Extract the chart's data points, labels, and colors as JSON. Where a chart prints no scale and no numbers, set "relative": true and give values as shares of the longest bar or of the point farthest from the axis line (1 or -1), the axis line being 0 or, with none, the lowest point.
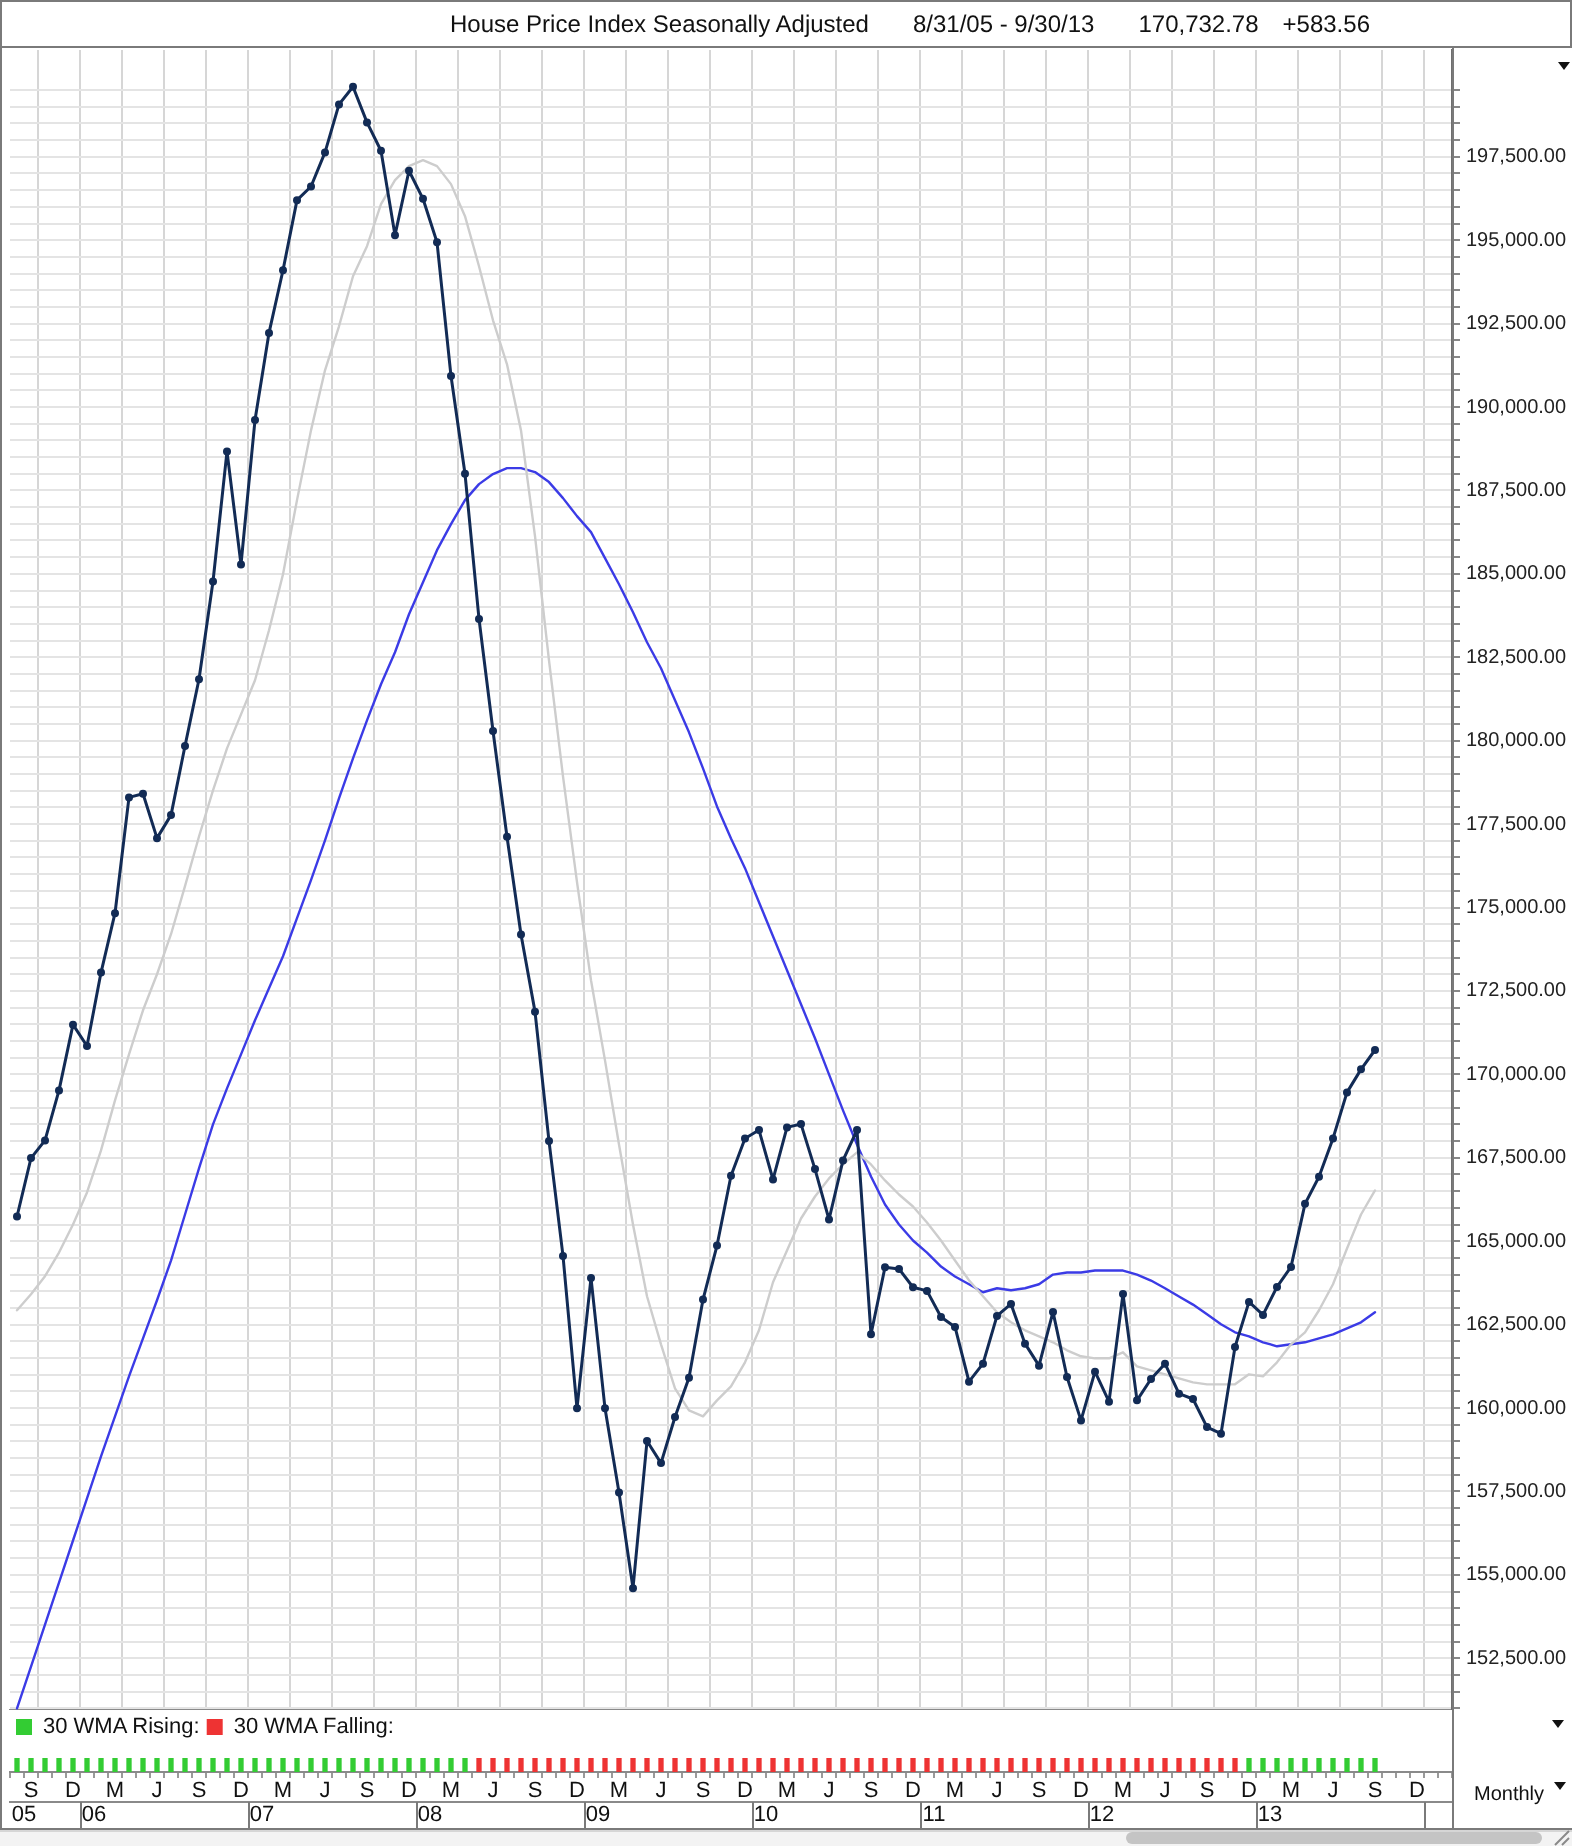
{
  "chart_data": [
    {
      "type": "line",
      "title": "House Price Index Seasonally Adjusted",
      "subtitle": "8/31/05 - 9/30/13",
      "annotations": [
        "170,732.78",
        "+583.56"
      ],
      "categories": [
        null,
        null,
        null,
        null,
        null,
        null,
        null,
        null,
        null,
        null,
        null,
        null,
        null,
        null,
        null,
        null,
        null,
        null,
        null,
        null,
        null,
        null,
        null,
        null,
        null,
        null,
        null,
        null,
        null,
        null,
        null,
        null,
        null,
        null,
        null,
        null,
        null,
        null,
        null,
        null,
        null,
        null,
        null,
        null,
        null,
        null,
        null,
        null,
        null,
        null,
        null,
        null,
        null,
        null,
        null,
        null,
        null,
        null,
        null,
        null,
        null,
        null,
        null,
        null,
        null,
        null,
        null,
        null,
        null,
        null,
        null,
        null,
        null,
        null,
        null,
        null,
        null,
        null,
        null,
        null,
        null,
        null,
        null,
        null,
        null,
        null,
        null,
        null,
        null,
        null,
        null,
        null,
        null,
        null,
        null,
        null,
        null,
        null,
        null,
        null,
        null,
        null,
        null
      ],
      "series": [
        {
          "color": "#122b55",
          "marker": "circle",
          "values": [
            165740,
            167490,
            168020,
            169520,
            171490,
            170850,
            173050,
            174830,
            178300,
            178410,
            177080,
            177770,
            179840,
            181840,
            184770,
            188670,
            185280,
            189610,
            192220,
            194100,
            196200,
            196610,
            197630,
            199070,
            199600,
            198530,
            197680,
            195150,
            197080,
            196240,
            194940,
            190930,
            188000,
            183650,
            180290,
            177120,
            174190,
            171880,
            168000,
            164560,
            159990,
            163900,
            159990,
            157470,
            154600,
            159010,
            158350,
            159730,
            160910,
            163250,
            164870,
            166960,
            168080,
            168330,
            166850,
            168410,
            168510,
            167160,
            165650,
            167420,
            168330,
            162210,
            164220,
            164170,
            163620,
            163510,
            162730,
            162430,
            160790,
            161330,
            162760,
            163120,
            161930,
            161270,
            162880,
            160930,
            159630,
            161090,
            160190,
            163420,
            160230,
            160870,
            161330,
            160430,
            160270,
            159430,
            159230,
            161830,
            163180,
            162790,
            163630,
            164230,
            166120,
            166930,
            168080,
            169460,
            170150,
            170730,
            null,
            null,
            null,
            null,
            null
          ]
        },
        {
          "color": "#cdcdcd",
          "marker": "none",
          "values": [
            162930,
            163410,
            163950,
            164660,
            165500,
            166460,
            167720,
            169220,
            170600,
            171920,
            173000,
            174200,
            175640,
            177130,
            178510,
            179770,
            180790,
            181810,
            183310,
            184990,
            187210,
            189300,
            191100,
            192420,
            193920,
            194820,
            196080,
            196800,
            197220,
            197400,
            197220,
            196680,
            195720,
            194220,
            192600,
            191280,
            189300,
            186130,
            182410,
            178930,
            175760,
            172820,
            170420,
            167900,
            165500,
            163350,
            161910,
            160590,
            159930,
            159750,
            160230,
            160650,
            161370,
            162330,
            163770,
            164720,
            165680,
            166340,
            166880,
            167300,
            167660,
            167300,
            166820,
            166400,
            166040,
            165560,
            165020,
            164420,
            163830,
            163350,
            162870,
            162570,
            162330,
            162150,
            161970,
            161730,
            161550,
            161490,
            161490,
            161670,
            161250,
            161130,
            161010,
            160890,
            160770,
            160710,
            160710,
            160710,
            161010,
            160950,
            161370,
            161910,
            162270,
            162930,
            163710,
            164780,
            165800,
            166520,
            null,
            null,
            null,
            null,
            null
          ]
        },
        {
          "color": "#3b3be6",
          "marker": "none",
          "values": [
            151000,
            152250,
            153510,
            154770,
            156030,
            157290,
            158550,
            159750,
            160950,
            162090,
            163230,
            164420,
            165800,
            167180,
            168500,
            169580,
            170600,
            171620,
            172580,
            173540,
            174680,
            175820,
            177010,
            178270,
            179470,
            180610,
            181690,
            182650,
            183790,
            184750,
            185710,
            186490,
            187210,
            187690,
            187990,
            188170,
            188170,
            188050,
            187750,
            187270,
            186730,
            186250,
            185470,
            184690,
            183850,
            182950,
            182170,
            181210,
            180250,
            179170,
            178030,
            177070,
            176180,
            175160,
            174140,
            173120,
            172100,
            171080,
            170000,
            168920,
            167900,
            166940,
            166100,
            165500,
            165020,
            164660,
            164240,
            163940,
            163710,
            163470,
            163590,
            163530,
            163590,
            163710,
            164000,
            164060,
            164060,
            164120,
            164120,
            164120,
            164000,
            163820,
            163590,
            163340,
            163100,
            162810,
            162510,
            162270,
            162150,
            161970,
            161850,
            161910,
            161970,
            162090,
            162210,
            162390,
            162570,
            162870,
            null,
            null,
            null,
            null,
            null
          ]
        }
      ],
      "ylim": [
        150950,
        200700
      ],
      "yticks": [
        {
          "value": 151000,
          "label": null
        },
        {
          "value": 151500,
          "label": null
        },
        {
          "value": 152000,
          "label": null
        },
        {
          "value": 152500,
          "label": "152,500.00"
        },
        {
          "value": 153000,
          "label": null
        },
        {
          "value": 153500,
          "label": null
        },
        {
          "value": 154000,
          "label": null
        },
        {
          "value": 154500,
          "label": null
        },
        {
          "value": 155000,
          "label": "155,000.00"
        },
        {
          "value": 155500,
          "label": null
        },
        {
          "value": 156000,
          "label": null
        },
        {
          "value": 156500,
          "label": null
        },
        {
          "value": 157000,
          "label": null
        },
        {
          "value": 157500,
          "label": "157,500.00"
        },
        {
          "value": 158000,
          "label": null
        },
        {
          "value": 158500,
          "label": null
        },
        {
          "value": 159000,
          "label": null
        },
        {
          "value": 159500,
          "label": null
        },
        {
          "value": 160000,
          "label": "160,000.00"
        },
        {
          "value": 160500,
          "label": null
        },
        {
          "value": 161000,
          "label": null
        },
        {
          "value": 161500,
          "label": null
        },
        {
          "value": 162000,
          "label": null
        },
        {
          "value": 162500,
          "label": "162,500.00"
        },
        {
          "value": 163000,
          "label": null
        },
        {
          "value": 163500,
          "label": null
        },
        {
          "value": 164000,
          "label": null
        },
        {
          "value": 164500,
          "label": null
        },
        {
          "value": 165000,
          "label": "165,000.00"
        },
        {
          "value": 165500,
          "label": null
        },
        {
          "value": 166000,
          "label": null
        },
        {
          "value": 166500,
          "label": null
        },
        {
          "value": 167000,
          "label": null
        },
        {
          "value": 167500,
          "label": "167,500.00"
        },
        {
          "value": 168000,
          "label": null
        },
        {
          "value": 168500,
          "label": null
        },
        {
          "value": 169000,
          "label": null
        },
        {
          "value": 169500,
          "label": null
        },
        {
          "value": 170000,
          "label": "170,000.00"
        },
        {
          "value": 170500,
          "label": null
        },
        {
          "value": 171000,
          "label": null
        },
        {
          "value": 171500,
          "label": null
        },
        {
          "value": 172000,
          "label": null
        },
        {
          "value": 172500,
          "label": "172,500.00"
        },
        {
          "value": 173000,
          "label": null
        },
        {
          "value": 173500,
          "label": null
        },
        {
          "value": 174000,
          "label": null
        },
        {
          "value": 174500,
          "label": null
        },
        {
          "value": 175000,
          "label": "175,000.00"
        },
        {
          "value": 175500,
          "label": null
        },
        {
          "value": 176000,
          "label": null
        },
        {
          "value": 176500,
          "label": null
        },
        {
          "value": 177000,
          "label": null
        },
        {
          "value": 177500,
          "label": "177,500.00"
        },
        {
          "value": 178000,
          "label": null
        },
        {
          "value": 178500,
          "label": null
        },
        {
          "value": 179000,
          "label": null
        },
        {
          "value": 179500,
          "label": null
        },
        {
          "value": 180000,
          "label": "180,000.00"
        },
        {
          "value": 180500,
          "label": null
        },
        {
          "value": 181000,
          "label": null
        },
        {
          "value": 181500,
          "label": null
        },
        {
          "value": 182000,
          "label": null
        },
        {
          "value": 182500,
          "label": "182,500.00"
        },
        {
          "value": 183000,
          "label": null
        },
        {
          "value": 183500,
          "label": null
        },
        {
          "value": 184000,
          "label": null
        },
        {
          "value": 184500,
          "label": null
        },
        {
          "value": 185000,
          "label": "185,000.00"
        },
        {
          "value": 185500,
          "label": null
        },
        {
          "value": 186000,
          "label": null
        },
        {
          "value": 186500,
          "label": null
        },
        {
          "value": 187000,
          "label": null
        },
        {
          "value": 187500,
          "label": "187,500.00"
        },
        {
          "value": 188000,
          "label": null
        },
        {
          "value": 188500,
          "label": null
        },
        {
          "value": 189000,
          "label": null
        },
        {
          "value": 189500,
          "label": null
        },
        {
          "value": 190000,
          "label": "190,000.00"
        },
        {
          "value": 190500,
          "label": null
        },
        {
          "value": 191000,
          "label": null
        },
        {
          "value": 191500,
          "label": null
        },
        {
          "value": 192000,
          "label": null
        },
        {
          "value": 192500,
          "label": "192,500.00"
        },
        {
          "value": 193000,
          "label": null
        },
        {
          "value": 193500,
          "label": null
        },
        {
          "value": 194000,
          "label": null
        },
        {
          "value": 194500,
          "label": null
        },
        {
          "value": 195000,
          "label": "195,000.00"
        },
        {
          "value": 195500,
          "label": null
        },
        {
          "value": 196000,
          "label": null
        },
        {
          "value": 196500,
          "label": null
        },
        {
          "value": 197000,
          "label": null
        },
        {
          "value": 197500,
          "label": "197,500.00"
        },
        {
          "value": 198000,
          "label": null
        },
        {
          "value": 198500,
          "label": null
        },
        {
          "value": 199000,
          "label": null
        },
        {
          "value": 199500,
          "label": null
        }
      ],
      "grid": true,
      "tick_labels": "y"
    },
    {
      "type": "bar",
      "relative": true,
      "legend": "top left",
      "annotations": [
        "Monthly"
      ],
      "categories": [
        null,
        "S",
        null,
        null,
        "D",
        null,
        null,
        "M",
        null,
        null,
        "J",
        null,
        null,
        "S",
        null,
        null,
        "D",
        null,
        null,
        "M",
        null,
        null,
        "J",
        null,
        null,
        "S",
        null,
        null,
        "D",
        null,
        null,
        "M",
        null,
        null,
        "J",
        null,
        null,
        "S",
        null,
        null,
        "D",
        null,
        null,
        "M",
        null,
        null,
        "J",
        null,
        null,
        "S",
        null,
        null,
        "D",
        null,
        null,
        "M",
        null,
        null,
        "J",
        null,
        null,
        "S",
        null,
        null,
        "D",
        null,
        null,
        "M",
        null,
        null,
        "J",
        null,
        null,
        "S",
        null,
        null,
        "D",
        null,
        null,
        "M",
        null,
        null,
        "J",
        null,
        null,
        "S",
        null,
        null,
        "D",
        null,
        null,
        "M",
        null,
        null,
        "J",
        null,
        null,
        "S",
        null,
        null,
        "D",
        null,
        null
      ],
      "series": [
        {
          "name": "30 WMA Rising:",
          "color": "#33cc33",
          "values": [
            1,
            1,
            1,
            1,
            1,
            1,
            1,
            1,
            1,
            1,
            1,
            1,
            1,
            1,
            1,
            1,
            1,
            1,
            1,
            1,
            1,
            1,
            1,
            1,
            1,
            1,
            1,
            1,
            1,
            1,
            1,
            1,
            1,
            null,
            null,
            null,
            null,
            null,
            null,
            null,
            null,
            null,
            null,
            null,
            null,
            null,
            null,
            null,
            null,
            null,
            null,
            null,
            null,
            null,
            null,
            null,
            null,
            null,
            null,
            null,
            null,
            null,
            null,
            null,
            null,
            null,
            null,
            null,
            null,
            null,
            null,
            null,
            null,
            null,
            null,
            null,
            null,
            null,
            null,
            null,
            null,
            null,
            null,
            null,
            null,
            null,
            null,
            null,
            1,
            1,
            1,
            1,
            1,
            1,
            1,
            1,
            1,
            1,
            null,
            null,
            null,
            null,
            null
          ]
        },
        {
          "name": "30 WMA Falling:",
          "color": "#ee3333",
          "values": [
            null,
            null,
            null,
            null,
            null,
            null,
            null,
            null,
            null,
            null,
            null,
            null,
            null,
            null,
            null,
            null,
            null,
            null,
            null,
            null,
            null,
            null,
            null,
            null,
            null,
            null,
            null,
            null,
            null,
            null,
            null,
            null,
            null,
            1,
            1,
            1,
            1,
            1,
            1,
            1,
            1,
            1,
            1,
            1,
            1,
            1,
            1,
            1,
            1,
            1,
            1,
            1,
            1,
            1,
            1,
            1,
            1,
            1,
            1,
            1,
            1,
            1,
            1,
            1,
            1,
            1,
            1,
            1,
            1,
            1,
            1,
            1,
            1,
            1,
            1,
            1,
            1,
            1,
            1,
            1,
            1,
            1,
            1,
            1,
            1,
            1,
            1,
            1,
            null,
            null,
            null,
            null,
            null,
            null,
            null,
            null,
            null,
            null,
            null,
            null,
            null,
            null,
            null
          ]
        }
      ],
      "x2lim": [
        "2005-08-01",
        "2014-03-01"
      ],
      "x2ticks": [
        {
          "value": "2005-09-01",
          "label": "05"
        },
        {
          "value": "2006-01-01",
          "label": null
        },
        {
          "value": "2006-02-01",
          "label": "06"
        },
        {
          "value": "2007-01-01",
          "label": null
        },
        {
          "value": "2007-02-01",
          "label": "07"
        },
        {
          "value": "2008-01-01",
          "label": null
        },
        {
          "value": "2008-02-01",
          "label": "08"
        },
        {
          "value": "2009-01-01",
          "label": null
        },
        {
          "value": "2009-02-01",
          "label": "09"
        },
        {
          "value": "2010-01-01",
          "label": null
        },
        {
          "value": "2010-02-01",
          "label": "10"
        },
        {
          "value": "2011-01-01",
          "label": null
        },
        {
          "value": "2011-02-01",
          "label": "11"
        },
        {
          "value": "2012-01-01",
          "label": null
        },
        {
          "value": "2012-02-01",
          "label": "12"
        },
        {
          "value": "2013-01-01",
          "label": null
        },
        {
          "value": "2013-02-01",
          "label": "13"
        },
        {
          "value": "2014-01-01",
          "label": null
        }
      ]
    }
  ]
}
